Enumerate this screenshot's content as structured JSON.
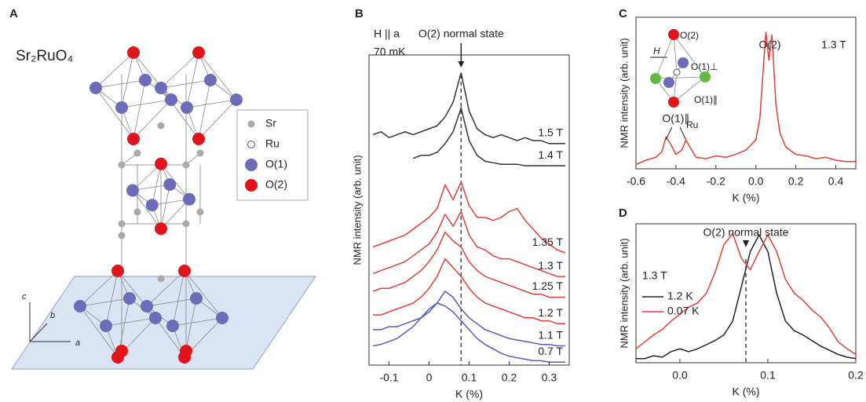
{
  "structure": {
    "label": "A",
    "formula": "Sr₂RuO₄",
    "legend": [
      "Sr",
      "Ru",
      "O(1)",
      "O(2)"
    ],
    "axes": [
      "c",
      "b",
      "a"
    ]
  },
  "chart_data": [
    {
      "type": "line",
      "label": "B",
      "xlabel": "K (%)",
      "ylabel": "NMR intensity (arb. unit)",
      "annotations": [
        "H || a",
        "70 mK",
        "O(2) normal state"
      ],
      "reference_x": 0.08,
      "x": [
        -0.14,
        -0.12,
        -0.1,
        -0.08,
        -0.06,
        -0.04,
        -0.02,
        0,
        0.02,
        0.04,
        0.06,
        0.08,
        0.1,
        0.12,
        0.14,
        0.16,
        0.18,
        0.2,
        0.22,
        0.24,
        0.26,
        0.28,
        0.3,
        0.32,
        0.34
      ],
      "xlim": [
        -0.15,
        0.35
      ],
      "xticks": [
        -0.1,
        0,
        0.1,
        0.2,
        0.3
      ],
      "ylim": [
        0,
        10.5
      ],
      "series": [
        {
          "name": "1.5 T",
          "color": "#333333",
          "values": [
            7.8,
            7.9,
            7.7,
            7.8,
            7.9,
            7.8,
            7.9,
            8.0,
            8.1,
            8.4,
            8.9,
            9.9,
            8.6,
            8.0,
            7.8,
            7.7,
            7.8,
            7.7,
            7.6,
            7.7,
            7.6,
            7.6,
            7.5,
            7.5,
            7.5
          ]
        },
        {
          "name": "1.4 T",
          "color": "#333333",
          "values": [
            null,
            null,
            null,
            null,
            null,
            7.0,
            7.1,
            7.1,
            7.2,
            7.5,
            7.9,
            8.7,
            7.6,
            7.1,
            6.9,
            6.85,
            6.8,
            6.8,
            6.8,
            6.75,
            6.75,
            6.75,
            6.75,
            6.75,
            6.75
          ]
        },
        {
          "name": "1.35 T",
          "color": "#e0403a",
          "values": [
            4.0,
            4.1,
            4.2,
            4.3,
            4.4,
            4.6,
            4.8,
            5.0,
            5.3,
            6.1,
            5.6,
            6.2,
            5.4,
            5.0,
            5.0,
            4.9,
            5.0,
            5.2,
            5.3,
            4.9,
            4.6,
            4.3,
            4.1,
            3.9,
            3.8
          ]
        },
        {
          "name": "1.3 T",
          "color": "#e0403a",
          "values": [
            3.1,
            3.2,
            3.3,
            3.4,
            3.5,
            3.7,
            3.9,
            4.1,
            4.5,
            5.1,
            4.7,
            5.2,
            4.4,
            4.0,
            3.9,
            3.7,
            3.6,
            3.6,
            3.5,
            3.4,
            3.3,
            3.2,
            3.1,
            3.0,
            3.0
          ]
        },
        {
          "name": "1.25 T",
          "color": "#e0403a",
          "values": [
            2.5,
            2.6,
            2.6,
            2.7,
            2.8,
            3.0,
            3.2,
            3.5,
            3.9,
            4.5,
            4.2,
            4.0,
            3.5,
            3.2,
            3.0,
            2.9,
            2.8,
            2.7,
            2.6,
            2.5,
            2.4,
            2.4,
            2.3,
            2.3,
            2.3
          ]
        },
        {
          "name": "1.2 T",
          "color": "#e0403a",
          "values": [
            1.7,
            1.7,
            1.8,
            1.9,
            2.0,
            2.1,
            2.3,
            2.6,
            3.0,
            3.6,
            3.3,
            3.0,
            2.6,
            2.3,
            2.1,
            2.0,
            1.9,
            1.8,
            1.7,
            1.6,
            1.6,
            1.5,
            1.5,
            1.4,
            1.4
          ]
        },
        {
          "name": "1.1 T",
          "color": "#5a5ab8",
          "values": [
            1.2,
            1.2,
            1.3,
            1.3,
            1.4,
            1.5,
            1.6,
            1.8,
            2.1,
            2.5,
            2.3,
            1.9,
            1.6,
            1.4,
            1.2,
            1.1,
            1.0,
            0.9,
            0.85,
            0.8,
            0.75,
            0.7,
            0.7,
            0.65,
            0.65
          ]
        },
        {
          "name": "0.7 T",
          "color": "#5a5ab8",
          "values": [
            0.65,
            0.7,
            0.8,
            0.9,
            1.1,
            1.3,
            1.6,
            1.9,
            2.1,
            2.0,
            1.8,
            1.5,
            1.2,
            0.9,
            0.7,
            0.55,
            0.4,
            0.3,
            0.25,
            0.2,
            0.15,
            0.15,
            0.1,
            0.1,
            0.1
          ]
        }
      ]
    },
    {
      "type": "line",
      "label": "C",
      "xlabel": "K (%)",
      "ylabel": "NMR intensity (arb. unit)",
      "annotations": [
        "O(2)",
        "1.3 T",
        "O(1)∥",
        "H",
        "O(2)",
        "O(1)⊥",
        "O(1)∥",
        "Ru"
      ],
      "x": [
        -0.6,
        -0.55,
        -0.5,
        -0.47,
        -0.45,
        -0.43,
        -0.4,
        -0.37,
        -0.35,
        -0.33,
        -0.3,
        -0.25,
        -0.2,
        -0.15,
        -0.1,
        -0.05,
        0,
        0.02,
        0.04,
        0.05,
        0.065,
        0.08,
        0.09,
        0.1,
        0.12,
        0.15,
        0.2,
        0.25,
        0.3,
        0.35,
        0.4,
        0.45,
        0.5
      ],
      "xlim": [
        -0.6,
        0.5
      ],
      "xticks": [
        -0.6,
        -0.4,
        -0.2,
        {
          "value": 0,
          "label": "0.0"
        },
        0.2,
        0.4
      ],
      "ylim": [
        0,
        10.5
      ],
      "series": [
        {
          "color": "#e0403a",
          "values": [
            0.3,
            0.6,
            0.8,
            1.2,
            2.2,
            1.8,
            1.0,
            1.3,
            2.0,
            1.5,
            0.8,
            0.7,
            0.9,
            0.8,
            1.0,
            1.3,
            2.0,
            3.5,
            7.5,
            9.5,
            7.5,
            9.3,
            7.0,
            4.5,
            2.5,
            1.5,
            1.0,
            0.9,
            0.7,
            0.8,
            0.6,
            0.5,
            0.5
          ]
        }
      ]
    },
    {
      "type": "line",
      "label": "D",
      "xlabel": "K (%)",
      "ylabel": "NMR intensity (arb. unit)",
      "annotations": [
        "O(2) normal state",
        "1.3 T"
      ],
      "reference_x": 0.075,
      "legend": "left",
      "x": [
        -0.05,
        -0.04,
        -0.03,
        -0.02,
        -0.01,
        0,
        0.01,
        0.02,
        0.03,
        0.04,
        0.05,
        0.06,
        0.07,
        0.08,
        0.09,
        0.1,
        0.11,
        0.12,
        0.13,
        0.14,
        0.15,
        0.16,
        0.17,
        0.18,
        0.19,
        0.2
      ],
      "xlim": [
        -0.05,
        0.2
      ],
      "xticks": [
        {
          "value": 0,
          "label": "0.0"
        },
        0.1,
        0.2
      ],
      "ylim": [
        0,
        10
      ],
      "series": [
        {
          "name": "1.2 K",
          "color": "#222222",
          "values": [
            0.3,
            0.3,
            0.5,
            0.4,
            0.8,
            1.0,
            0.8,
            1.0,
            1.3,
            1.6,
            2.0,
            3.0,
            5.5,
            8.0,
            9.2,
            8.0,
            5.0,
            3.0,
            2.3,
            2.0,
            1.6,
            1.2,
            0.9,
            0.6,
            0.4,
            0.3
          ]
        },
        {
          "name": "0.07 K",
          "color": "#e0403a",
          "values": [
            1.0,
            1.5,
            2.0,
            2.4,
            3.0,
            3.5,
            4.0,
            4.3,
            5.0,
            6.5,
            8.5,
            9.3,
            7.5,
            6.7,
            8.0,
            9.2,
            8.0,
            6.0,
            5.0,
            4.5,
            3.8,
            3.3,
            2.5,
            1.5,
            1.0,
            0.6
          ]
        }
      ]
    }
  ]
}
